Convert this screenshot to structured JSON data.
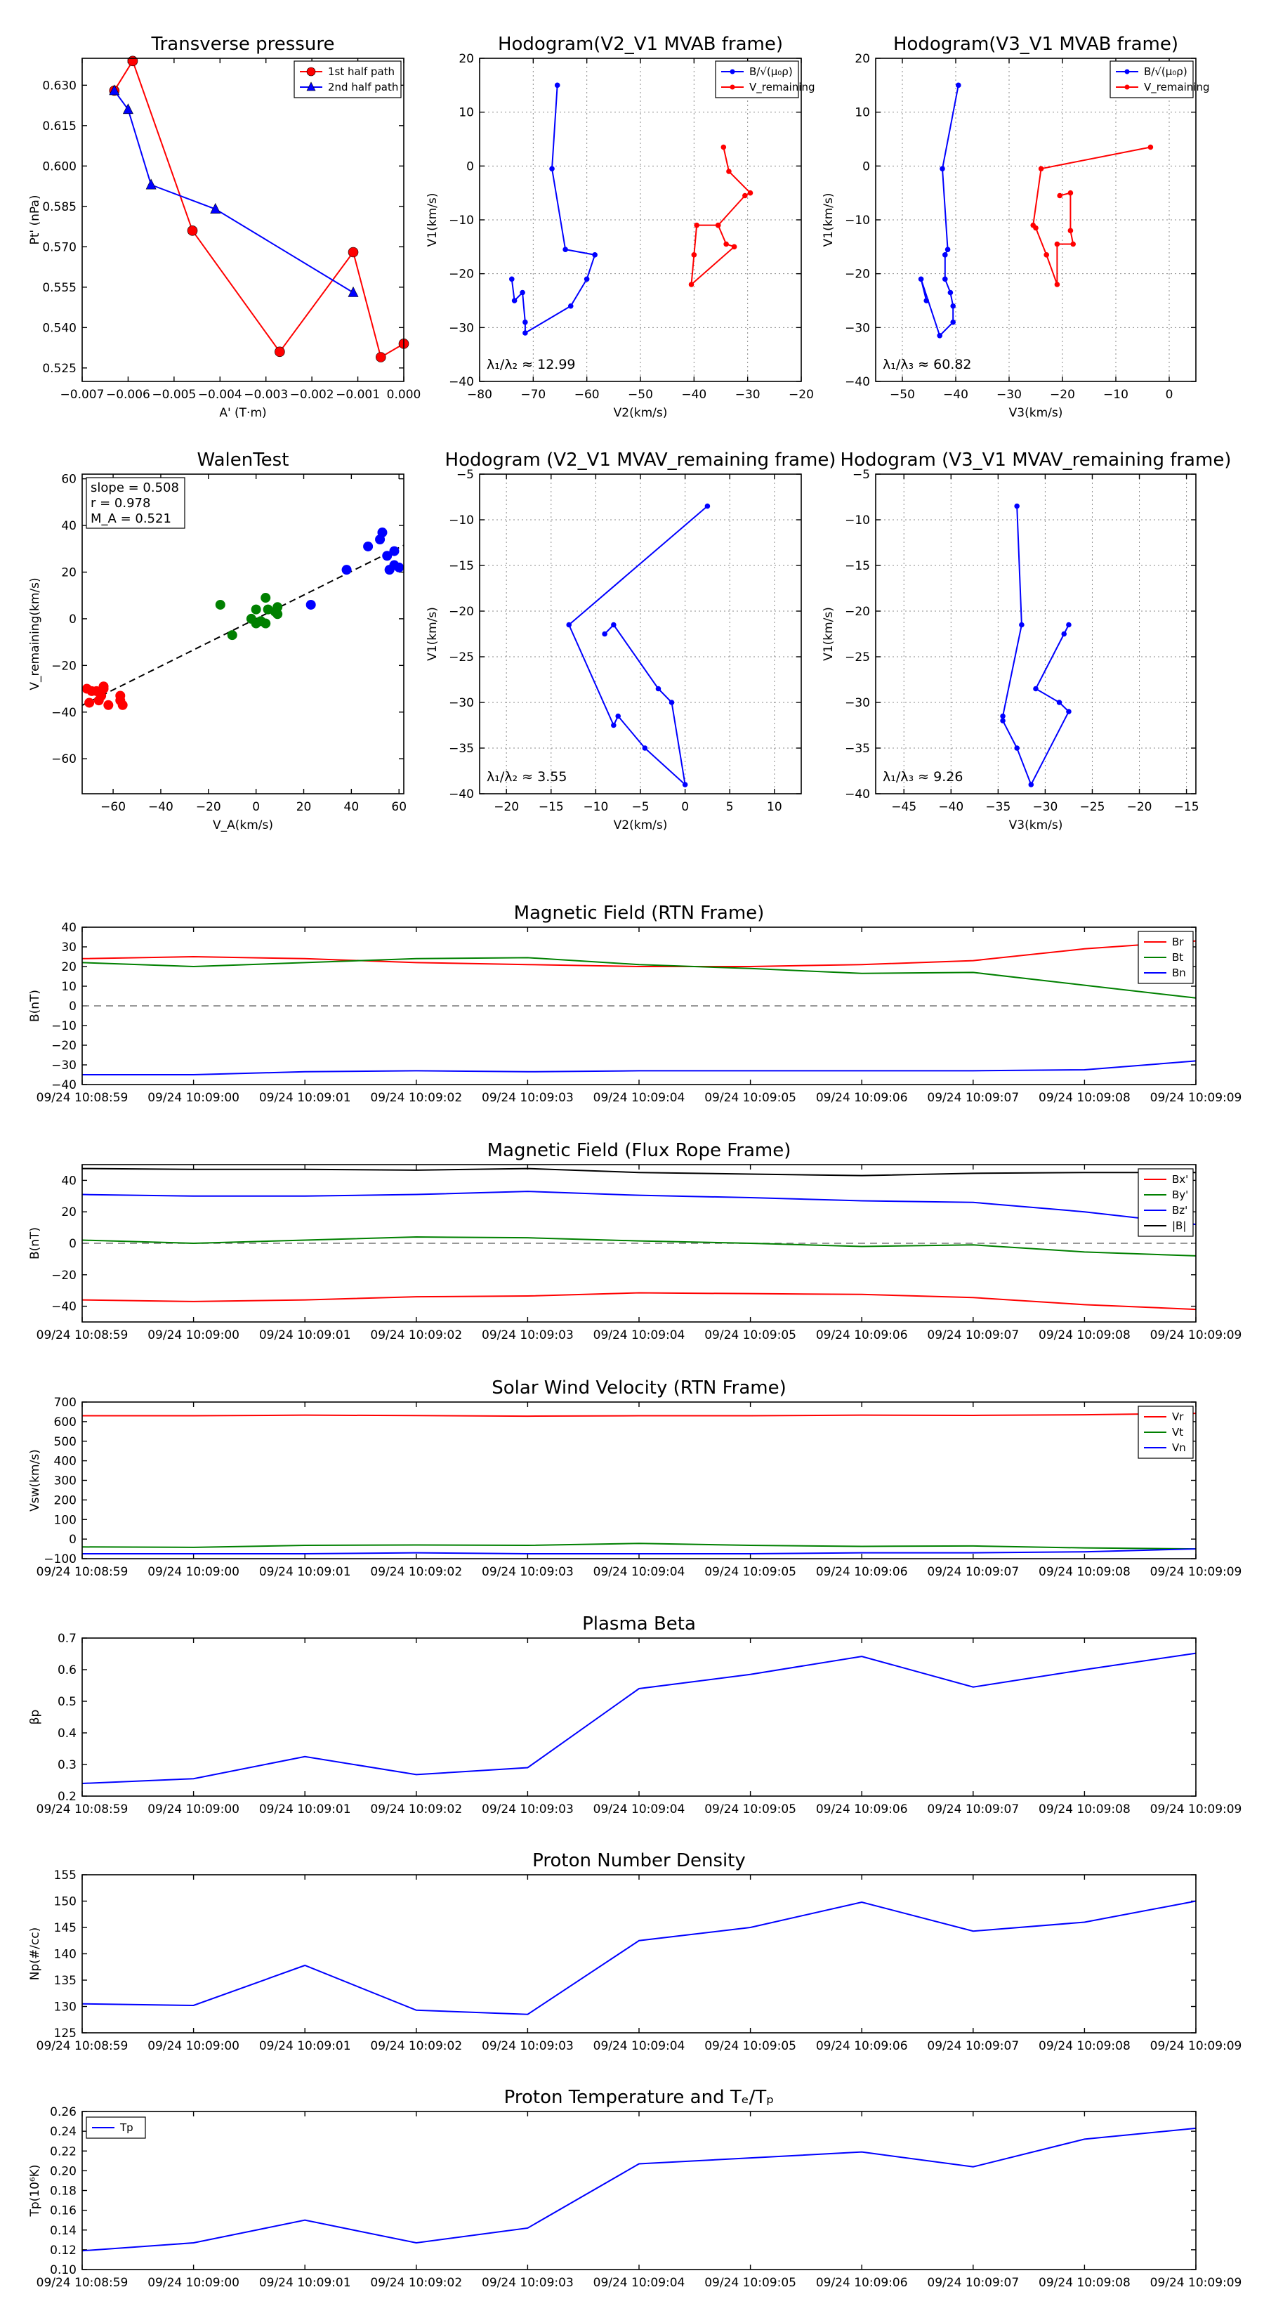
{
  "chart_data": [
    {
      "id": "tp",
      "type": "line",
      "title": "Transverse pressure",
      "xlabel": "A' (T·m)",
      "ylabel": "Pt' (nPa)",
      "xlim": [
        -0.007,
        0.0
      ],
      "ylim": [
        0.52,
        0.64
      ],
      "xticks": [
        -0.007,
        -0.006,
        -0.005,
        -0.004,
        -0.003,
        -0.002,
        -0.001,
        0.0
      ],
      "xtick_labels": [
        "−0.007",
        "−0.006",
        "−0.005",
        "−0.004",
        "−0.003",
        "−0.002",
        "−0.001",
        "0.000"
      ],
      "yticks": [
        0.525,
        0.54,
        0.555,
        0.57,
        0.585,
        0.6,
        0.615,
        0.63
      ],
      "ytick_labels": [
        "0.525",
        "0.540",
        "0.555",
        "0.570",
        "0.585",
        "0.600",
        "0.615",
        "0.630"
      ],
      "grid": false,
      "legend": "top-right",
      "series": [
        {
          "name": "1st half path",
          "color": "#ff0000",
          "marker": "circle",
          "x": [
            -0.0063,
            -0.0059,
            -0.0046,
            -0.0027,
            -0.0011,
            -0.0005,
            0.0
          ],
          "y": [
            0.628,
            0.639,
            0.576,
            0.531,
            0.568,
            0.529,
            0.534
          ]
        },
        {
          "name": "2nd half path",
          "color": "#0000ff",
          "marker": "triangle",
          "x": [
            -0.0063,
            -0.006,
            -0.0055,
            -0.0041,
            -0.0011
          ],
          "y": [
            0.628,
            0.621,
            0.593,
            0.584,
            0.553
          ]
        }
      ]
    },
    {
      "id": "hb2",
      "type": "line",
      "title": "Hodogram(V2_V1 MVAB frame)",
      "xlabel": "V2(km/s)",
      "ylabel": "V1(km/s)",
      "xlim": [
        -80,
        -20
      ],
      "ylim": [
        -40,
        20
      ],
      "xticks": [
        -80,
        -70,
        -60,
        -50,
        -40,
        -30,
        -20
      ],
      "xtick_labels": [
        "−80",
        "−70",
        "−60",
        "−50",
        "−40",
        "−30",
        "−20"
      ],
      "yticks": [
        -40,
        -30,
        -20,
        -10,
        0,
        10,
        20
      ],
      "ytick_labels": [
        "−40",
        "−30",
        "−20",
        "−10",
        "0",
        "10",
        "20"
      ],
      "grid": true,
      "legend": "top-right",
      "annotation": "λ₁/λ₂ ≈ 12.99",
      "series": [
        {
          "name": "B/√(μ₀ρ)",
          "color": "#0000ff",
          "marker": "dot",
          "x": [
            -65.5,
            -66.5,
            -64,
            -58.5,
            -60,
            -63,
            -71.5,
            -71.5,
            -72,
            -73.5,
            -74
          ],
          "y": [
            15,
            -0.5,
            -15.5,
            -16.5,
            -21,
            -26,
            -31,
            -29,
            -23.5,
            -25,
            -21
          ]
        },
        {
          "name": "V_remaining",
          "color": "#ff0000",
          "marker": "dot",
          "x": [
            -34.5,
            -33.5,
            -29.5,
            -30.5,
            -35.5,
            -39.5,
            -40,
            -40.5,
            -32.5,
            -34,
            -35.5
          ],
          "y": [
            3.5,
            -1,
            -5,
            -5.5,
            -11,
            -11,
            -16.5,
            -22,
            -15,
            -14.5,
            -11
          ]
        }
      ]
    },
    {
      "id": "hb3",
      "type": "line",
      "title": "Hodogram(V3_V1 MVAB frame)",
      "xlabel": "V3(km/s)",
      "ylabel": "V1(km/s)",
      "xlim": [
        -55,
        5
      ],
      "ylim": [
        -40,
        20
      ],
      "xticks": [
        -50,
        -40,
        -30,
        -20,
        -10,
        0
      ],
      "xtick_labels": [
        "−50",
        "−40",
        "−30",
        "−20",
        "−10",
        "0"
      ],
      "yticks": [
        -40,
        -30,
        -20,
        -10,
        0,
        10,
        20
      ],
      "ytick_labels": [
        "−40",
        "−30",
        "−20",
        "−10",
        "0",
        "10",
        "20"
      ],
      "grid": true,
      "legend": "top-right",
      "annotation": "λ₁/λ₃ ≈ 60.82",
      "series": [
        {
          "name": "B/√(μ₀ρ)",
          "color": "#0000ff",
          "marker": "dot",
          "x": [
            -39.5,
            -42.5,
            -41.5,
            -42,
            -42,
            -41,
            -40.5,
            -40.5,
            -43,
            -46.5,
            -45.5
          ],
          "y": [
            15,
            -0.5,
            -15.5,
            -16.5,
            -21,
            -23.5,
            -26,
            -29,
            -31.5,
            -21,
            -25
          ]
        },
        {
          "name": "V_remaining",
          "color": "#ff0000",
          "marker": "dot",
          "x": [
            -3.5,
            -24,
            -25.5,
            -25,
            -23,
            -21,
            -21,
            -18,
            -18.5,
            -18.5,
            -20.5
          ],
          "y": [
            3.5,
            -0.5,
            -11,
            -11.5,
            -16.5,
            -22,
            -14.5,
            -14.5,
            -12,
            -5,
            -5.5
          ]
        }
      ]
    },
    {
      "id": "walen",
      "type": "scatter",
      "title": "WalenTest",
      "xlabel": "V_A(km/s)",
      "ylabel": "V_remaining(km/s)",
      "xlim": [
        -73,
        62
      ],
      "ylim": [
        -75,
        62
      ],
      "xticks": [
        -60,
        -40,
        -20,
        0,
        20,
        40,
        60
      ],
      "xtick_labels": [
        "−60",
        "−40",
        "−20",
        "0",
        "20",
        "40",
        "60"
      ],
      "yticks": [
        -60,
        -40,
        -20,
        0,
        20,
        40,
        60
      ],
      "ytick_labels": [
        "−60",
        "−40",
        "−20",
        "0",
        "20",
        "40",
        "60"
      ],
      "grid": false,
      "stats": [
        "slope = 0.508",
        "r = 0.978",
        "M_A = 0.521"
      ],
      "fit": {
        "slope": 0.508,
        "intercept": 0.0
      },
      "series": [
        {
          "name": "red",
          "color": "#ff0000",
          "x": [
            -71,
            -69,
            -70,
            -67,
            -66,
            -64,
            -65,
            -62,
            -57,
            -57,
            -56,
            -64
          ],
          "y": [
            -30,
            -31,
            -36,
            -31,
            -35,
            -30,
            -33,
            -37,
            -33,
            -35,
            -37,
            -29
          ]
        },
        {
          "name": "green",
          "color": "#008000",
          "x": [
            -15,
            -10,
            -2,
            0,
            2,
            4,
            4,
            5,
            8,
            9,
            9,
            0
          ],
          "y": [
            6,
            -7,
            0,
            4,
            -1,
            9,
            -2,
            4,
            3,
            5,
            2,
            -2
          ]
        },
        {
          "name": "blue",
          "color": "#0000ff",
          "x": [
            23,
            38,
            47,
            52,
            53,
            55,
            56,
            58,
            58,
            60
          ],
          "y": [
            6,
            21,
            31,
            34,
            37,
            27,
            21,
            23,
            29,
            22
          ]
        }
      ]
    },
    {
      "id": "hv2",
      "type": "line",
      "title": "Hodogram (V2_V1 MVAV_remaining frame)",
      "xlabel": "V2(km/s)",
      "ylabel": "V1(km/s)",
      "xlim": [
        -23,
        13
      ],
      "ylim": [
        -40,
        -5
      ],
      "xticks": [
        -20,
        -15,
        -10,
        -5,
        0,
        5,
        10
      ],
      "xtick_labels": [
        "−20",
        "−15",
        "−10",
        "−5",
        "0",
        "5",
        "10"
      ],
      "yticks": [
        -40,
        -35,
        -30,
        -25,
        -20,
        -15,
        -10,
        -5
      ],
      "ytick_labels": [
        "−40",
        "−35",
        "−30",
        "−25",
        "−20",
        "−15",
        "−10",
        "−5"
      ],
      "grid": true,
      "annotation": "λ₁/λ₂ ≈ 3.55",
      "series": [
        {
          "name": "V",
          "color": "#0000ff",
          "marker": "dot",
          "x": [
            2.5,
            -13,
            -8,
            -7.5,
            -4.5,
            0,
            -1.5,
            -3,
            -8,
            -9
          ],
          "y": [
            -8.5,
            -21.5,
            -32.5,
            -31.5,
            -35,
            -39,
            -30,
            -28.5,
            -21.5,
            -22.5
          ]
        }
      ]
    },
    {
      "id": "hv3",
      "type": "line",
      "title": "Hodogram (V3_V1 MVAV_remaining frame)",
      "xlabel": "V3(km/s)",
      "ylabel": "V1(km/s)",
      "xlim": [
        -48,
        -14
      ],
      "ylim": [
        -40,
        -5
      ],
      "xticks": [
        -45,
        -40,
        -35,
        -30,
        -25,
        -20,
        -15
      ],
      "xtick_labels": [
        "−45",
        "−40",
        "−35",
        "−30",
        "−25",
        "−20",
        "−15"
      ],
      "yticks": [
        -40,
        -35,
        -30,
        -25,
        -20,
        -15,
        -10,
        -5
      ],
      "ytick_labels": [
        "−40",
        "−35",
        "−30",
        "−25",
        "−20",
        "−15",
        "−10",
        "−5"
      ],
      "grid": true,
      "annotation": "λ₁/λ₃ ≈ 9.26",
      "series": [
        {
          "name": "V",
          "color": "#0000ff",
          "marker": "dot",
          "x": [
            -33,
            -32.5,
            -34.5,
            -34.5,
            -33,
            -31.5,
            -27.5,
            -28.5,
            -31,
            -28,
            -27.5
          ],
          "y": [
            -8.5,
            -21.5,
            -31.5,
            -32,
            -35,
            -39,
            -31,
            -30,
            -28.5,
            -22.5,
            -21.5
          ]
        }
      ]
    },
    {
      "id": "brtn",
      "type": "line",
      "title": "Magnetic Field (RTN Frame)",
      "ylabel": "B(nT)",
      "ylim": [
        -40,
        40
      ],
      "yticks": [
        -40,
        -30,
        -20,
        -10,
        0,
        10,
        20,
        30,
        40
      ],
      "ytick_labels": [
        "−40",
        "−30",
        "−20",
        "−10",
        "0",
        "10",
        "20",
        "30",
        "40"
      ],
      "legend": "top-right",
      "zero_line": true,
      "series": [
        {
          "name": "Br",
          "color": "#ff0000",
          "values": [
            24,
            25,
            24,
            22,
            21,
            20,
            20,
            21,
            23,
            29,
            33
          ]
        },
        {
          "name": "Bt",
          "color": "#008000",
          "values": [
            22,
            20,
            22,
            24,
            24.5,
            21,
            19,
            16.5,
            17,
            10.5,
            4
          ]
        },
        {
          "name": "Bn",
          "color": "#0000ff",
          "values": [
            -35,
            -35,
            -33.5,
            -33,
            -33.5,
            -33,
            -33,
            -33,
            -33,
            -32.5,
            -28
          ]
        }
      ]
    },
    {
      "id": "bfr",
      "type": "line",
      "title": "Magnetic Field (Flux Rope Frame)",
      "ylabel": "B(nT)",
      "ylim": [
        -50,
        50
      ],
      "yticks": [
        -40,
        -20,
        0,
        20,
        40
      ],
      "ytick_labels": [
        "−40",
        "−20",
        "0",
        "20",
        "40"
      ],
      "legend": "top-right",
      "zero_line": true,
      "series": [
        {
          "name": "Bx'",
          "color": "#ff0000",
          "values": [
            -36,
            -37,
            -36,
            -34,
            -33.5,
            -31.5,
            -32,
            -32.5,
            -34.5,
            -39,
            -42
          ]
        },
        {
          "name": "By'",
          "color": "#008000",
          "values": [
            2,
            0,
            2,
            4,
            3.5,
            1.5,
            0,
            -2,
            -1,
            -5.5,
            -8
          ]
        },
        {
          "name": "Bz'",
          "color": "#0000ff",
          "values": [
            31,
            30,
            30,
            31,
            33,
            30.5,
            29,
            27,
            26,
            20,
            12
          ]
        },
        {
          "name": "|B|",
          "color": "#000000",
          "values": [
            47.5,
            47,
            47,
            46.5,
            47.5,
            45,
            44,
            43,
            44.5,
            45,
            45
          ]
        }
      ]
    },
    {
      "id": "vsw",
      "type": "line",
      "title": "Solar Wind Velocity (RTN Frame)",
      "ylabel": "Vsw(km/s)",
      "ylim": [
        -100,
        700
      ],
      "yticks": [
        -100,
        0,
        100,
        200,
        300,
        400,
        500,
        600,
        700
      ],
      "ytick_labels": [
        "−100",
        "0",
        "100",
        "200",
        "300",
        "400",
        "500",
        "600",
        "700"
      ],
      "legend": "top-right",
      "series": [
        {
          "name": "Vr",
          "color": "#ff0000",
          "values": [
            630,
            630,
            633,
            631,
            628,
            630,
            630,
            633,
            632,
            635,
            642
          ]
        },
        {
          "name": "Vt",
          "color": "#008000",
          "values": [
            -40,
            -42,
            -32,
            -30,
            -32,
            -22,
            -32,
            -37,
            -35,
            -45,
            -50
          ]
        },
        {
          "name": "Vn",
          "color": "#0000ff",
          "values": [
            -75,
            -75,
            -75,
            -70,
            -75,
            -75,
            -75,
            -70,
            -70,
            -65,
            -50
          ]
        }
      ]
    },
    {
      "id": "beta",
      "type": "line",
      "title": "Plasma Beta",
      "ylabel": "βp",
      "ylim": [
        0.2,
        0.7
      ],
      "yticks": [
        0.2,
        0.3,
        0.4,
        0.5,
        0.6,
        0.7
      ],
      "ytick_labels": [
        "0.2",
        "0.3",
        "0.4",
        "0.5",
        "0.6",
        "0.7"
      ],
      "series": [
        {
          "name": "beta",
          "color": "#0000ff",
          "values": [
            0.24,
            0.255,
            0.325,
            0.268,
            0.29,
            0.54,
            0.585,
            0.642,
            0.545,
            0.6,
            0.652
          ]
        }
      ]
    },
    {
      "id": "np",
      "type": "line",
      "title": "Proton Number Density",
      "ylabel": "Np(#/cc)",
      "ylim": [
        125,
        155
      ],
      "yticks": [
        125,
        130,
        135,
        140,
        145,
        150,
        155
      ],
      "ytick_labels": [
        "125",
        "130",
        "135",
        "140",
        "145",
        "150",
        "155"
      ],
      "series": [
        {
          "name": "Np",
          "color": "#0000ff",
          "values": [
            130.5,
            130.2,
            137.8,
            129.3,
            128.5,
            142.5,
            145,
            149.8,
            144.3,
            146,
            150
          ]
        }
      ]
    },
    {
      "id": "tpt",
      "type": "line",
      "title": "Proton Temperature and Tₑ/Tₚ",
      "ylabel": "Tp(10⁶K)",
      "ylim": [
        0.1,
        0.26
      ],
      "yticks": [
        0.1,
        0.12,
        0.14,
        0.16,
        0.18,
        0.2,
        0.22,
        0.24,
        0.26
      ],
      "ytick_labels": [
        "0.10",
        "0.12",
        "0.14",
        "0.16",
        "0.18",
        "0.20",
        "0.22",
        "0.24",
        "0.26"
      ],
      "legend": "top-left",
      "series": [
        {
          "name": "Tp",
          "color": "#0000ff",
          "values": [
            0.119,
            0.127,
            0.15,
            0.127,
            0.142,
            0.207,
            0.213,
            0.219,
            0.204,
            0.232,
            0.243
          ]
        }
      ]
    }
  ],
  "time_ticks": [
    "09/24 10:08:59",
    "09/24 10:09:00",
    "09/24 10:09:01",
    "09/24 10:09:02",
    "09/24 10:09:03",
    "09/24 10:09:04",
    "09/24 10:09:05",
    "09/24 10:09:06",
    "09/24 10:09:07",
    "09/24 10:09:08",
    "09/24 10:09:09"
  ]
}
